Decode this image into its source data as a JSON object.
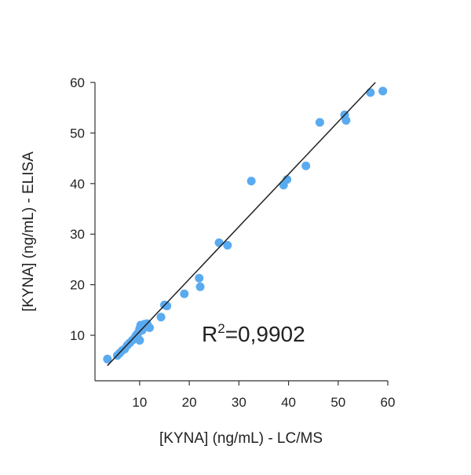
{
  "chart_data": {
    "type": "scatter",
    "title": "",
    "xlabel": "[KYNA] (ng/mL) - LC/MS",
    "ylabel": "[KYNA] (ng/mL) - ELISA",
    "xlim": [
      1,
      60
    ],
    "ylim": [
      1,
      60
    ],
    "x_ticks": [
      10,
      20,
      30,
      40,
      50,
      60
    ],
    "y_ticks": [
      10,
      20,
      30,
      40,
      50,
      60
    ],
    "x_tick_labels": [
      "10",
      "20",
      "30",
      "40",
      "50",
      "60"
    ],
    "y_tick_labels": [
      "10",
      "20",
      "30",
      "40",
      "50",
      "60"
    ],
    "grid": false,
    "legend": "none",
    "point_color": "#5aaaf0",
    "line_color": "#222222",
    "fit_line": {
      "x": [
        3.5,
        57.5
      ],
      "y": [
        4,
        60
      ]
    },
    "annotation": {
      "prefix": "R",
      "sup": "2",
      "value": "=0,9902"
    },
    "points": [
      {
        "x": 3.5,
        "y": 5.3
      },
      {
        "x": 5.5,
        "y": 6.0
      },
      {
        "x": 6.0,
        "y": 6.5
      },
      {
        "x": 6.5,
        "y": 7.0
      },
      {
        "x": 7.0,
        "y": 7.3
      },
      {
        "x": 7.5,
        "y": 8.0
      },
      {
        "x": 8.0,
        "y": 8.5
      },
      {
        "x": 8.5,
        "y": 9.0
      },
      {
        "x": 9.0,
        "y": 9.5
      },
      {
        "x": 9.3,
        "y": 10.0
      },
      {
        "x": 9.7,
        "y": 10.5
      },
      {
        "x": 9.8,
        "y": 9.2
      },
      {
        "x": 10.0,
        "y": 9.0
      },
      {
        "x": 10.0,
        "y": 11.3
      },
      {
        "x": 10.2,
        "y": 12.0
      },
      {
        "x": 10.5,
        "y": 11.0
      },
      {
        "x": 11.0,
        "y": 12.2
      },
      {
        "x": 11.5,
        "y": 12.3
      },
      {
        "x": 12.0,
        "y": 11.5
      },
      {
        "x": 14.3,
        "y": 13.6
      },
      {
        "x": 15.0,
        "y": 16.0
      },
      {
        "x": 15.5,
        "y": 15.8
      },
      {
        "x": 19.0,
        "y": 18.2
      },
      {
        "x": 22.0,
        "y": 21.3
      },
      {
        "x": 22.2,
        "y": 19.6
      },
      {
        "x": 26.0,
        "y": 28.3
      },
      {
        "x": 27.7,
        "y": 27.8
      },
      {
        "x": 32.5,
        "y": 40.5
      },
      {
        "x": 39.0,
        "y": 39.7
      },
      {
        "x": 39.7,
        "y": 40.8
      },
      {
        "x": 43.5,
        "y": 43.5
      },
      {
        "x": 46.3,
        "y": 52.1
      },
      {
        "x": 51.3,
        "y": 53.6
      },
      {
        "x": 51.6,
        "y": 52.5
      },
      {
        "x": 56.5,
        "y": 58.0
      },
      {
        "x": 59.0,
        "y": 58.3
      }
    ]
  }
}
